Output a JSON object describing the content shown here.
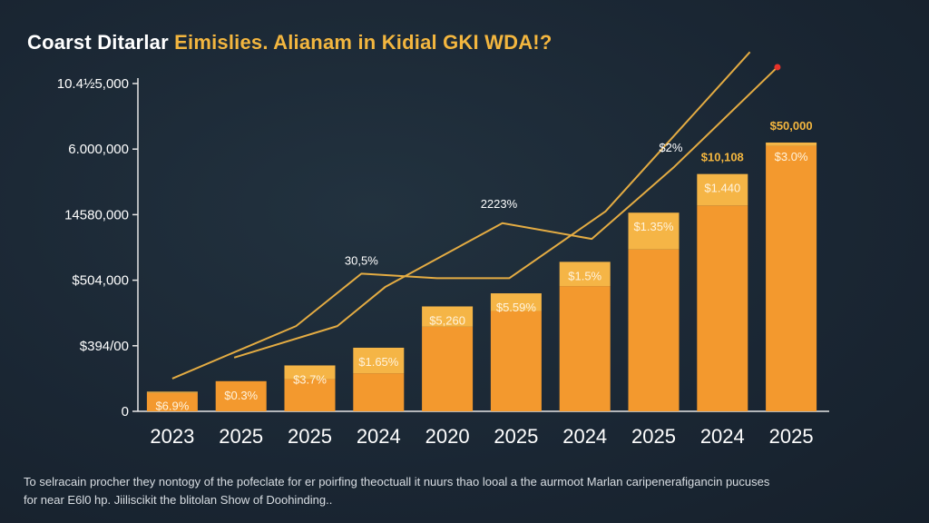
{
  "title": {
    "lead": "Coarst Ditarlar ",
    "accent": "Eimislies. Alianam in Kidial GKI WDA!?"
  },
  "caption": {
    "line1": "To selracain procher they nontogy of the pofeclate for er poirfing theoctuall it nuurs thao looal a the aurmoot Marlan caripenerafigancin pucuses",
    "line2": "for near E6l0 hp. Jiiliscikit the blitolan Show of Doohinding.."
  },
  "colors": {
    "background": "#1b2836",
    "bar_top": "#f5b546",
    "bar_bottom": "#f3992e",
    "line": "#e4ac43",
    "marker": "#e8332a",
    "accent": "#f3b63f"
  },
  "chart_data": {
    "type": "bar",
    "title": "Coarst Ditarlar Eimislies. Alianam in Kidial GKI WDA!?",
    "xlabel": "",
    "ylabel": "",
    "categories": [
      "2023",
      "2025",
      "2025",
      "2024",
      "2020",
      "2025",
      "2024",
      "2025",
      "2024",
      "2025"
    ],
    "y_ticks": [
      {
        "label": "0",
        "value": 0
      },
      {
        "label": "$394/00",
        "value": 1
      },
      {
        "label": "$504,000",
        "value": 2
      },
      {
        "label": "14580,000",
        "value": 3
      },
      {
        "label": "6.000,000",
        "value": 4
      },
      {
        "label": "10.4½5,000",
        "value": 5
      }
    ],
    "ylim": [
      0,
      5
    ],
    "grid": false,
    "legend": "none",
    "series": [
      {
        "values": [
          0.28,
          0.46,
          0.49,
          0.58,
          1.29,
          1.53,
          1.91,
          2.47,
          3.14,
          4.05
        ]
      },
      {
        "values": [
          0.02,
          0.0,
          0.21,
          0.39,
          0.31,
          0.27,
          0.37,
          0.56,
          0.48,
          0.05
        ]
      }
    ],
    "bar_labels": [
      "$6.9%",
      "$0.3%",
      "$3.7%",
      "$1.65%",
      "$5,260",
      "$5.59%",
      "$1.5%",
      "$1.35%",
      "$1.440",
      "$3.0%"
    ],
    "top_labels": [
      "",
      "",
      "",
      "",
      "",
      "",
      "",
      "",
      "$10,108",
      "$50,000"
    ],
    "lines": [
      {
        "x": [
          0.5,
          2.3,
          3.25,
          4.35,
          5.4,
          6.8,
          8.9
        ],
        "y": [
          0.5,
          1.3,
          2.1,
          2.03,
          2.03,
          3.05,
          5.48
        ]
      },
      {
        "x": [
          1.4,
          2.9,
          3.6,
          5.3,
          6.6,
          7.8,
          9.3
        ],
        "y": [
          0.82,
          1.3,
          1.9,
          2.87,
          2.63,
          3.73,
          5.25
        ]
      }
    ],
    "line_labels": [
      {
        "label": "30,5%",
        "x": 3.25,
        "y": 2.24
      },
      {
        "label": "2223%",
        "x": 5.25,
        "y": 3.1
      },
      {
        "label": "$2%",
        "x": 7.75,
        "y": 3.96
      }
    ],
    "marker_point": {
      "x": 9.3,
      "y": 5.25
    }
  }
}
